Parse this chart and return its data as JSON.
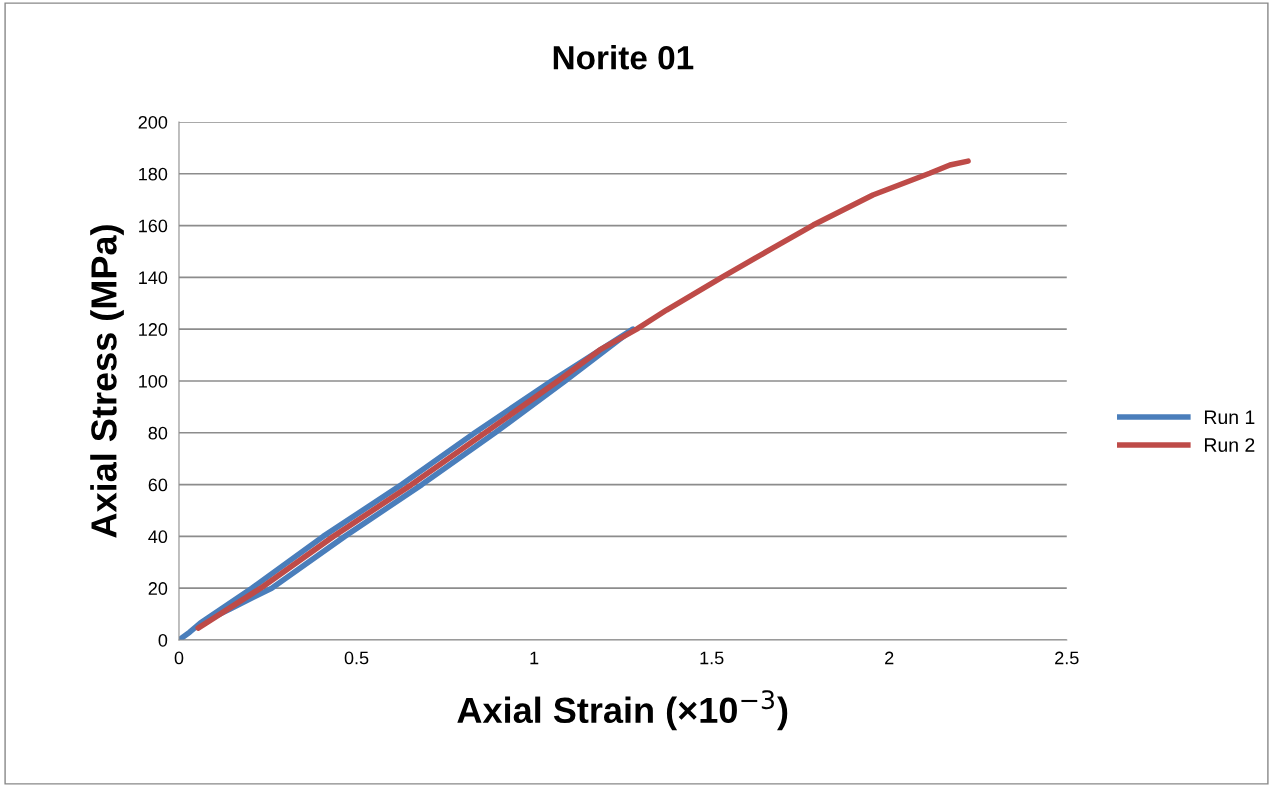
{
  "chart_data": {
    "type": "line",
    "title": "Norite 01",
    "xlabel": "Axial Strain (×10$^{−3}$)",
    "ylabel": "Axial Stress (MPa)",
    "xlim": [
      0,
      2.5
    ],
    "xticks": [
      0,
      0.5,
      1,
      1.5,
      2,
      2.5
    ],
    "ylim": [
      0,
      200
    ],
    "yticks": [
      0,
      20,
      40,
      60,
      80,
      100,
      120,
      140,
      160,
      180,
      200
    ],
    "grid": "y",
    "legend": "right",
    "marker": "none",
    "line_style": "solid",
    "series": [
      {
        "name": "Run 1",
        "color": "#4a7ebb",
        "x": [
          0,
          0.03,
          0.06,
          0.205,
          0.406,
          0.627,
          0.833,
          1.049,
          1.278,
          1.087,
          0.89,
          0.684,
          0.467,
          0.261,
          0.144,
          0.07
        ],
        "values": [
          0,
          3,
          6.5,
          20,
          40,
          60,
          80,
          100,
          120,
          100,
          80,
          60,
          40,
          20,
          12,
          7
        ]
      },
      {
        "name": "Run 2",
        "color": "#be4b48",
        "x": [
          0.054,
          0.23,
          0.435,
          0.655,
          0.862,
          1.067,
          1.185,
          1.289,
          1.373,
          1.532,
          1.673,
          1.786,
          1.954,
          2.114,
          2.171,
          2.222
        ],
        "values": [
          4.6,
          20,
          40,
          60,
          80,
          100,
          112,
          120,
          127.4,
          140.3,
          151.4,
          160.2,
          171.8,
          180.2,
          183.4,
          184.9
        ]
      }
    ]
  }
}
